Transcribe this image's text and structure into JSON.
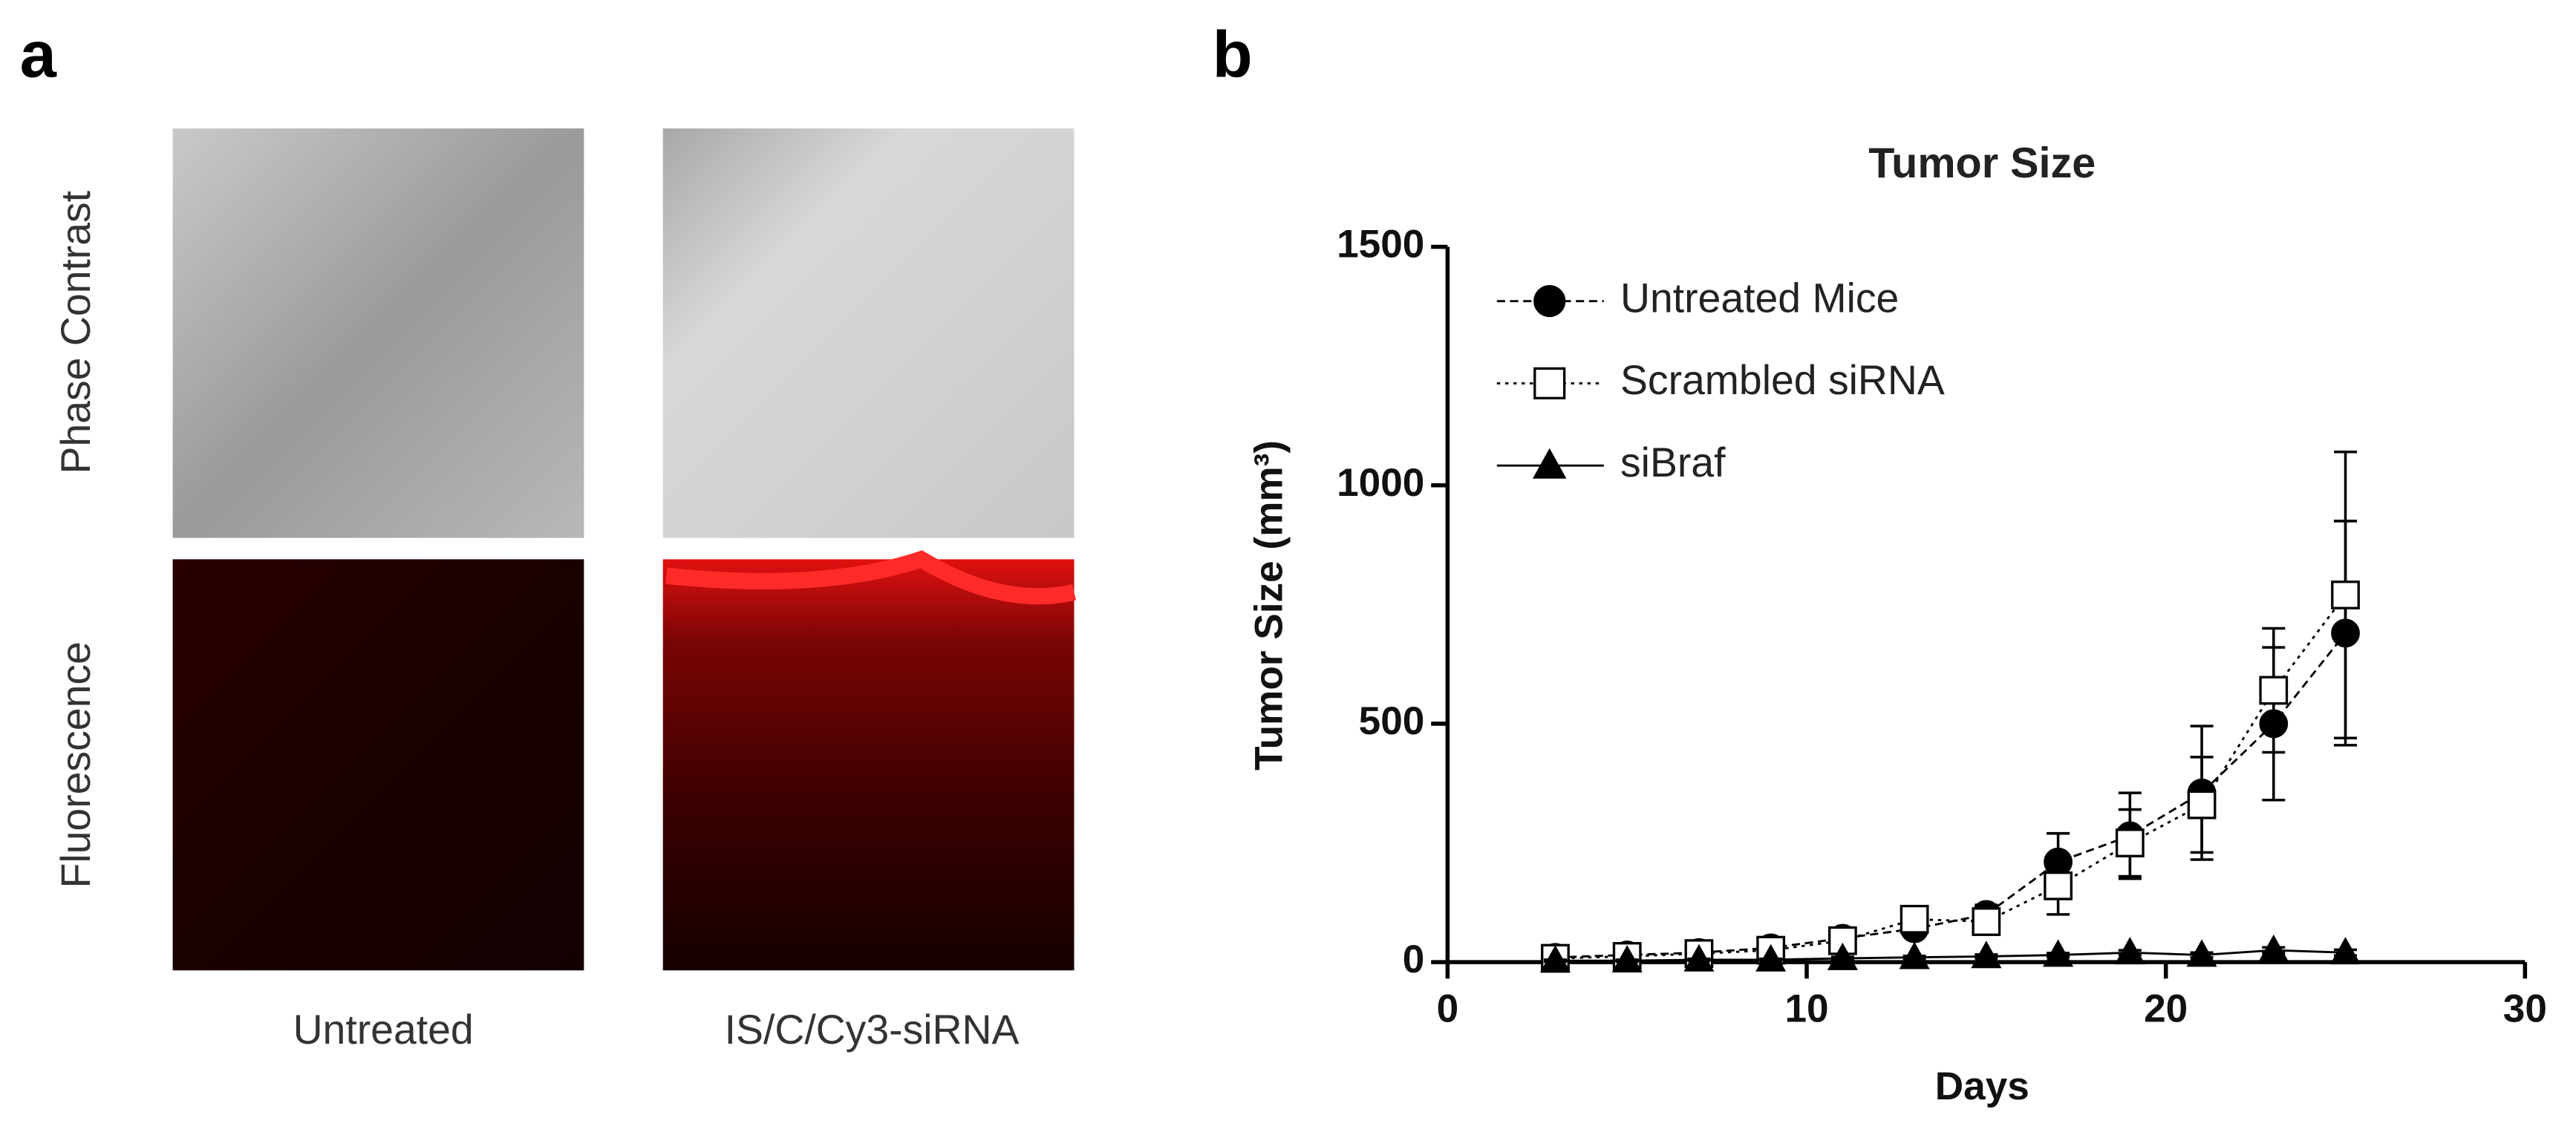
{
  "panel_a": {
    "label": "a",
    "row_labels": [
      "Phase Contrast",
      "Fluorescence"
    ],
    "column_labels": [
      "Untreated",
      "IS/C/Cy3-siRNA"
    ]
  },
  "panel_b_label": "b",
  "chart_data": {
    "type": "line",
    "title": "Tumor Size",
    "x_label": "Days",
    "y_label": "Tumor Size (mm³)",
    "x": [
      3,
      5,
      7,
      9,
      11,
      13,
      15,
      17,
      19,
      21,
      23,
      25
    ],
    "series": [
      {
        "name": "Untreated Mice",
        "color": "#000000",
        "marker": "circle",
        "dash": "dashed",
        "values": [
          10,
          15,
          20,
          30,
          50,
          70,
          100,
          210,
          265,
          355,
          500,
          690
        ],
        "errors": [
          5,
          5,
          5,
          8,
          10,
          15,
          20,
          60,
          90,
          140,
          160,
          235
        ]
      },
      {
        "name": "Scrambled siRNA",
        "color": "#000000",
        "marker": "square",
        "dash": "dotted",
        "values": [
          8,
          12,
          18,
          25,
          45,
          90,
          85,
          160,
          250,
          330,
          570,
          770
        ],
        "errors": [
          4,
          5,
          5,
          8,
          10,
          15,
          20,
          60,
          70,
          100,
          130,
          300
        ]
      },
      {
        "name": "siBraf",
        "color": "#000000",
        "marker": "triangle",
        "dash": "solid",
        "values": [
          3,
          3,
          5,
          5,
          8,
          10,
          12,
          15,
          20,
          15,
          25,
          20
        ],
        "errors": [
          2,
          2,
          2,
          2,
          3,
          3,
          4,
          4,
          5,
          5,
          6,
          6
        ]
      }
    ],
    "xlim": [
      0,
      30
    ],
    "xticks": [
      0,
      10,
      20,
      30
    ],
    "ylim": [
      0,
      1500
    ],
    "yticks": [
      0,
      500,
      1000,
      1500
    ],
    "legend": "upper left"
  }
}
